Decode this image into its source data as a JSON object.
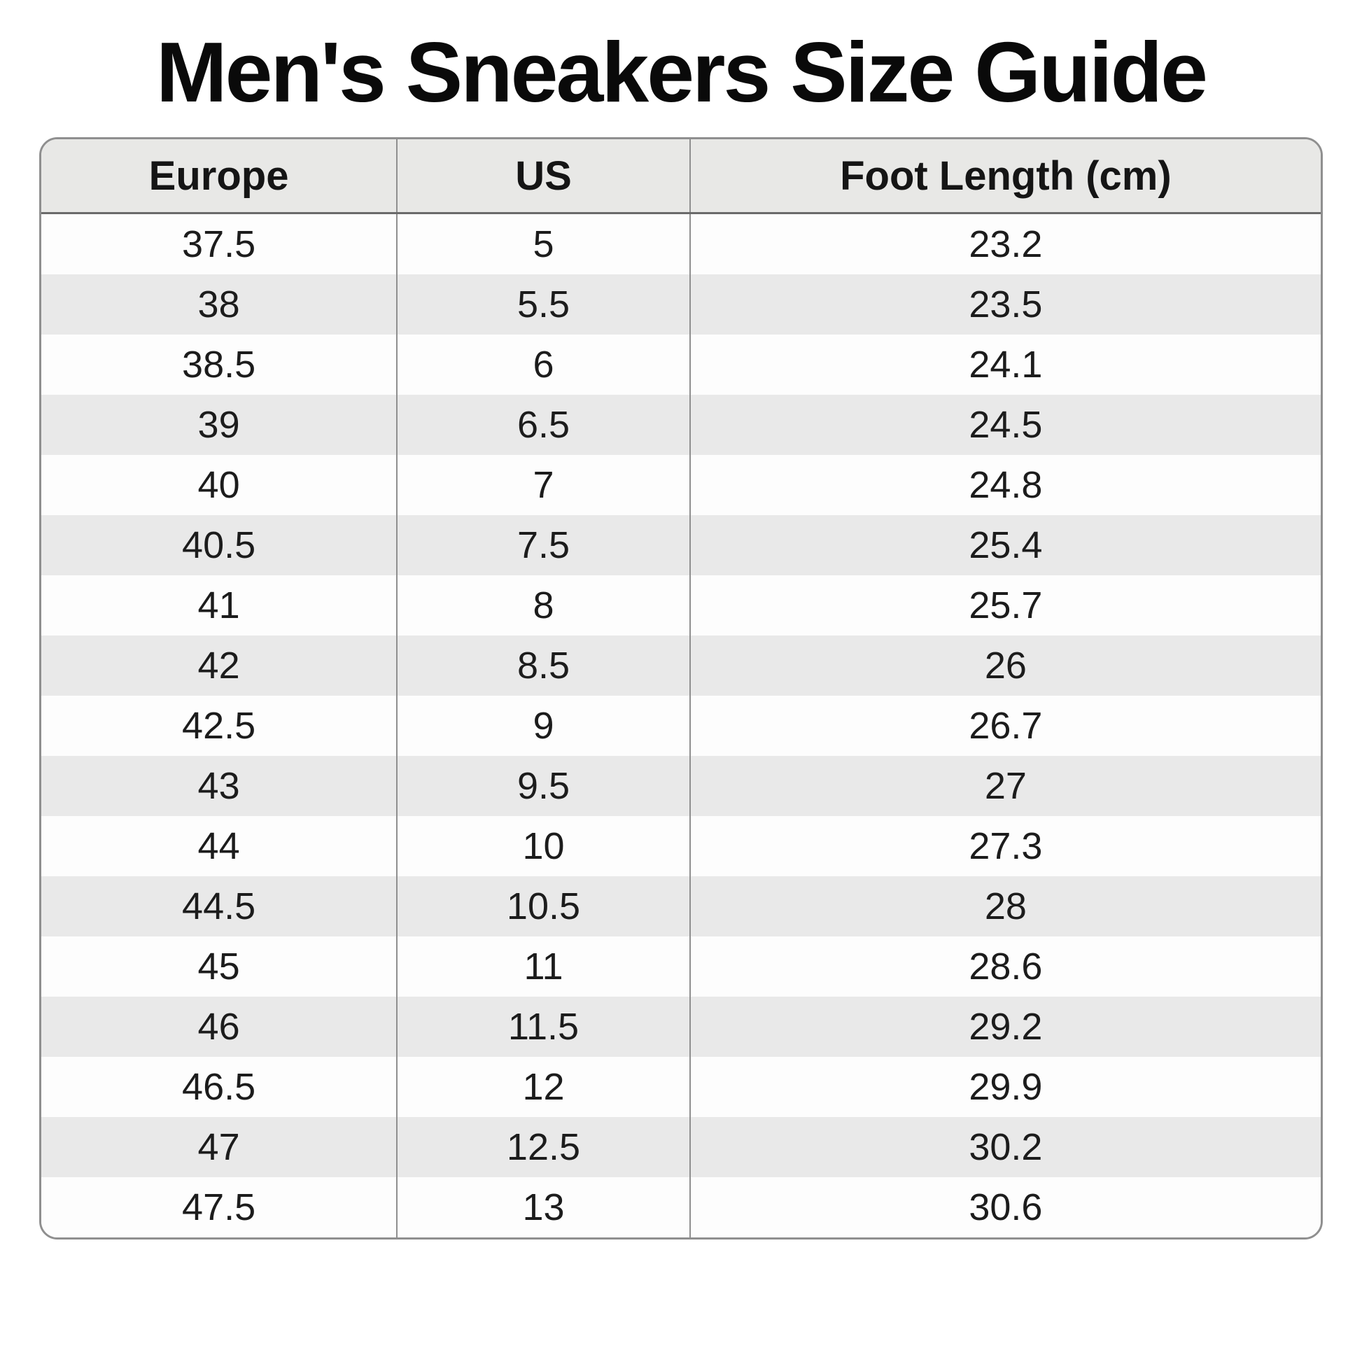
{
  "title": "Men's Sneakers Size Guide",
  "table": {
    "columns": [
      "Europe",
      "US",
      "Foot Length (cm)"
    ],
    "rows": [
      [
        "37.5",
        "5",
        "23.2"
      ],
      [
        "38",
        "5.5",
        "23.5"
      ],
      [
        "38.5",
        "6",
        "24.1"
      ],
      [
        "39",
        "6.5",
        "24.5"
      ],
      [
        "40",
        "7",
        "24.8"
      ],
      [
        "40.5",
        "7.5",
        "25.4"
      ],
      [
        "41",
        "8",
        "25.7"
      ],
      [
        "42",
        "8.5",
        "26"
      ],
      [
        "42.5",
        "9",
        "26.7"
      ],
      [
        "43",
        "9.5",
        "27"
      ],
      [
        "44",
        "10",
        "27.3"
      ],
      [
        "44.5",
        "10.5",
        "28"
      ],
      [
        "45",
        "11",
        "28.6"
      ],
      [
        "46",
        "11.5",
        "29.2"
      ],
      [
        "46.5",
        "12",
        "29.9"
      ],
      [
        "47",
        "12.5",
        "30.2"
      ],
      [
        "47.5",
        "13",
        "30.6"
      ]
    ]
  },
  "colors": {
    "header_bg": "#e8e8e6",
    "stripe_bg": "#e9e9e9",
    "row_bg": "#fdfdfd",
    "border": "#8f8f8f",
    "header_divider": "#6a6a6a",
    "text": "#1c1c1c"
  }
}
